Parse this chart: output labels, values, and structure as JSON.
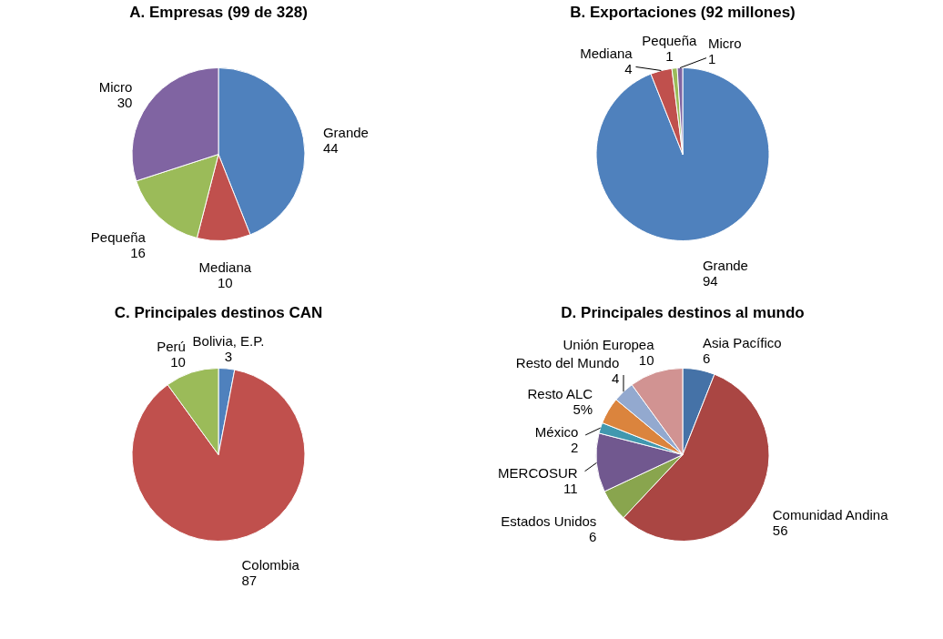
{
  "chart_data": [
    {
      "type": "pie",
      "title": "A. Empresas (99 de 328)",
      "categories": [
        "Grande",
        "Mediana",
        "Pequeña",
        "Micro"
      ],
      "values": [
        44,
        10,
        16,
        30
      ],
      "colors": [
        "#4f81bd",
        "#c0504d",
        "#9bbb59",
        "#8064a2"
      ],
      "data_labels": true
    },
    {
      "type": "pie",
      "title": "B. Exportaciones (92 millones)",
      "categories": [
        "Grande",
        "Mediana",
        "Pequeña",
        "Micro"
      ],
      "values": [
        94,
        4,
        1,
        1
      ],
      "colors": [
        "#4f81bd",
        "#c0504d",
        "#9bbb59",
        "#8064a2"
      ],
      "data_labels": true
    },
    {
      "type": "pie",
      "title": "C. Principales destinos CAN",
      "categories": [
        "Bolivia, E.P.",
        "Colombia",
        "Perú"
      ],
      "values": [
        3,
        87,
        10
      ],
      "colors": [
        "#4f81bd",
        "#c0504d",
        "#9bbb59"
      ],
      "data_labels": true
    },
    {
      "type": "pie",
      "title": "D. Principales destinos al mundo",
      "categories": [
        "Asia Pacífico",
        "Comunidad Andina",
        "Estados Unidos",
        "MERCOSUR",
        "México",
        "Resto ALC",
        "Resto del Mundo",
        "Unión Europea"
      ],
      "values": [
        6,
        56,
        6,
        11,
        2,
        5,
        4,
        10
      ],
      "colors": [
        "#4572a7",
        "#aa4643",
        "#89a54e",
        "#71588f",
        "#4198af",
        "#db843d",
        "#93a9cf",
        "#d19392"
      ],
      "value_labels": [
        "6",
        "56",
        "6",
        "11",
        "2",
        "5%",
        "4",
        "10"
      ]
    }
  ]
}
